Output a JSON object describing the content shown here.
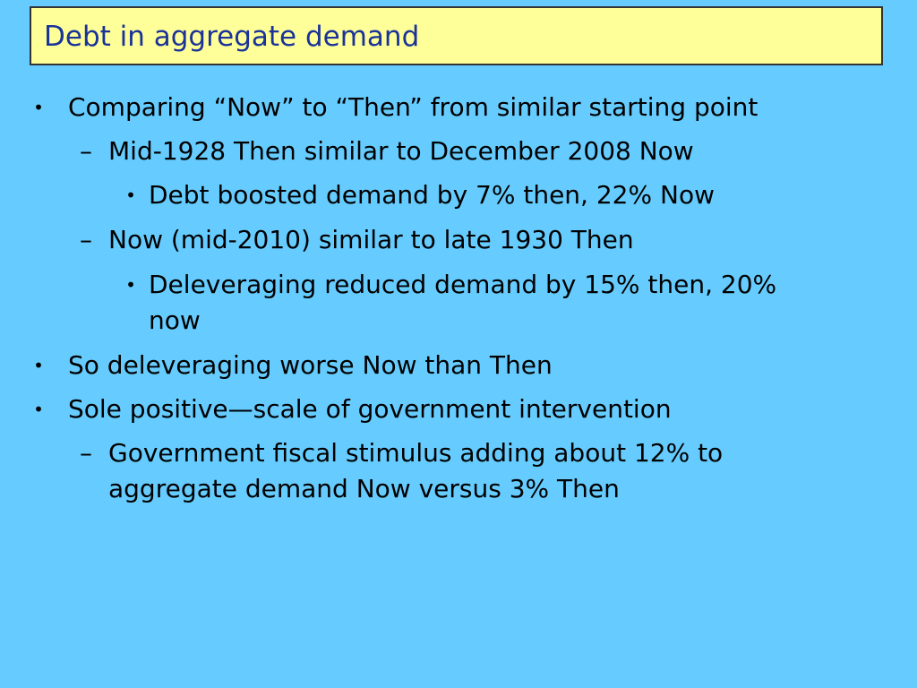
{
  "slide": {
    "title": "Debt in aggregate demand",
    "colors": {
      "background": "#66ccff",
      "title_bg": "#ffff99",
      "title_text": "#1a3399",
      "body_text": "#000000"
    },
    "bullets": [
      {
        "marker": "•",
        "text": "Comparing “Now” to “Then” from similar starting point"
      },
      {
        "marker": "–",
        "text": "Mid-1928 Then similar to December 2008 Now"
      },
      {
        "marker": "•",
        "text": "Debt boosted demand by 7% then, 22% Now"
      },
      {
        "marker": "–",
        "text": "Now (mid-2010) similar to late 1930 Then"
      },
      {
        "marker": "•",
        "text_line1": "Deleveraging reduced demand by 15% then, 20%",
        "text_line2": "now"
      },
      {
        "marker": "•",
        "text": "So deleveraging worse Now than Then"
      },
      {
        "marker": "•",
        "text": "Sole positive—scale of government intervention"
      },
      {
        "marker": "–",
        "text_line1": "Government fiscal stimulus adding about 12% to",
        "text_line2": "aggregate demand Now versus 3% Then"
      }
    ]
  }
}
